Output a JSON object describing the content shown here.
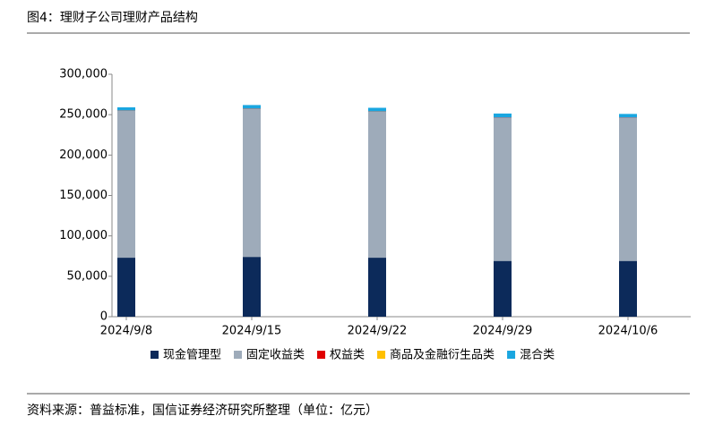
{
  "chart_data": {
    "type": "stacked_bar",
    "title": "图4：理财子公司理财产品结构",
    "source": "资料来源：普益标准，国信证券经济研究所整理（单位：亿元）",
    "categories": [
      "2024/9/8",
      "2024/9/15",
      "2024/9/22",
      "2024/9/29",
      "2024/10/6"
    ],
    "series": [
      {
        "name": "现金管理型",
        "color": "#0c2a5a",
        "values": [
          73000,
          74000,
          73000,
          69000,
          69000
        ]
      },
      {
        "name": "固定收益类",
        "color": "#9eabba",
        "values": [
          181700,
          183000,
          180600,
          177000,
          177000
        ]
      },
      {
        "name": "权益类",
        "color": "#e00000",
        "values": [
          300,
          300,
          300,
          300,
          300
        ]
      },
      {
        "name": "商品及金融衍生品类",
        "color": "#ffc000",
        "values": [
          100,
          100,
          100,
          100,
          100
        ]
      },
      {
        "name": "混合类",
        "color": "#1aa6e0",
        "values": [
          4000,
          4500,
          4500,
          5000,
          4500
        ]
      }
    ],
    "ylim": [
      0,
      300000
    ],
    "yticks": [
      0,
      {
        "value": 50000,
        "label": "50,000"
      },
      {
        "value": 100000,
        "label": "100,000"
      },
      {
        "value": 150000,
        "label": "150,000"
      },
      {
        "value": 200000,
        "label": "200,000"
      },
      {
        "value": 250000,
        "label": "250,000"
      },
      {
        "value": 300000,
        "label": "300,000"
      }
    ],
    "legend": "bottom"
  }
}
